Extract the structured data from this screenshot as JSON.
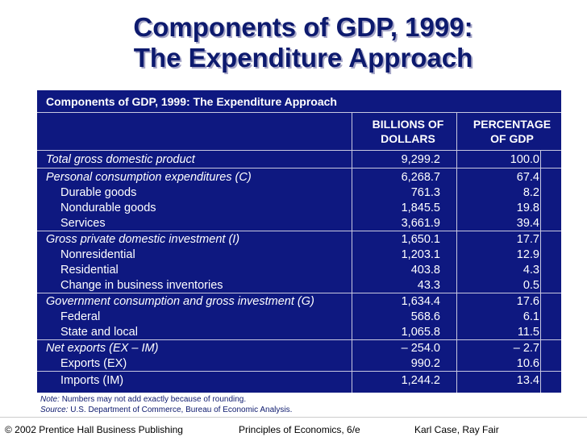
{
  "slide": {
    "title_line1": "Components of GDP, 1999:",
    "title_line2": "The Expenditure Approach"
  },
  "table": {
    "caption": "Components of GDP, 1999:  The Expenditure Approach",
    "col1_header_line1": "BILLIONS OF",
    "col1_header_line2": "DOLLARS",
    "col2_header_line1": "PERCENTAGE",
    "col2_header_line2": "OF GDP",
    "rows": [
      {
        "label": "Total gross domestic product",
        "billions": "9,299.2",
        "percent": "100.0"
      },
      {
        "label": "Personal consumption expenditures (C)",
        "billions": "6,268.7",
        "percent": "67.4"
      },
      {
        "label": "Durable goods",
        "billions": "761.3",
        "percent": "8.2"
      },
      {
        "label": "Nondurable goods",
        "billions": "1,845.5",
        "percent": "19.8"
      },
      {
        "label": "Services",
        "billions": "3,661.9",
        "percent": "39.4"
      },
      {
        "label": "Gross private domestic investment (I)",
        "billions": "1,650.1",
        "percent": "17.7"
      },
      {
        "label": "Nonresidential",
        "billions": "1,203.1",
        "percent": "12.9"
      },
      {
        "label": "Residential",
        "billions": "403.8",
        "percent": "4.3"
      },
      {
        "label": "Change in business inventories",
        "billions": "43.3",
        "percent": "0.5"
      },
      {
        "label": "Government consumption and gross investment (G)",
        "billions": "1,634.4",
        "percent": "17.6"
      },
      {
        "label": "Federal",
        "billions": "568.6",
        "percent": "6.1"
      },
      {
        "label": "State and local",
        "billions": "1,065.8",
        "percent": "11.5"
      },
      {
        "label": "Net exports (EX – IM)",
        "billions": "– 254.0",
        "percent": "– 2.7"
      },
      {
        "label": "Exports (EX)",
        "billions": "990.2",
        "percent": "10.6"
      },
      {
        "label": "Imports (IM)",
        "billions": "1,244.2",
        "percent": "13.4"
      }
    ]
  },
  "notes": {
    "note_label": "Note:",
    "note_text": "Numbers may not add exactly because of rounding.",
    "source_label": "Source:",
    "source_text": "U.S. Department of Commerce, Bureau of Economic Analysis."
  },
  "footer": {
    "copyright": "© 2002 Prentice Hall Business Publishing",
    "book": "Principles of Economics, 6/e",
    "authors": "Karl Case, Ray Fair"
  }
}
